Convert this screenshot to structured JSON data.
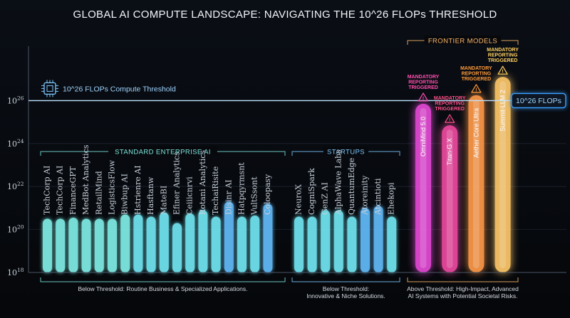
{
  "chart_data": {
    "type": "bar",
    "title": "GLOBAL AI COMPUTE LANDSCAPE: NAVIGATING THE 10^26 FLOPs THRESHOLD",
    "y_scale": "log",
    "ylim_exponent": [
      18,
      28
    ],
    "y_ticks": [
      {
        "exp": 18,
        "base": "10",
        "sup": "18"
      },
      {
        "exp": 20,
        "base": "10",
        "sup": "20"
      },
      {
        "exp": 22,
        "base": "10",
        "sup": "22"
      },
      {
        "exp": 24,
        "base": "10",
        "sup": "24"
      },
      {
        "exp": 26,
        "base": "10",
        "sup": "26"
      }
    ],
    "threshold": {
      "exp": 26,
      "label": "10^26 FLOPs Compute Threshold",
      "right_label": "10^26 FLOPs",
      "icon": "chip-icon",
      "color": "#3aa0ff"
    },
    "groups": [
      {
        "key": "enterprise",
        "label": "STANDARD ENTERPRISE AI",
        "footer": [
          "Below Threshold: Routine Business & Specialized Applications."
        ],
        "bars": [
          {
            "label": "TechCorp AI",
            "exp": 20.5,
            "color": "#7ee8e0"
          },
          {
            "label": "TechCorp AI",
            "exp": 20.5,
            "color": "#7ee8e0"
          },
          {
            "label": "FinanceGPT",
            "exp": 20.55,
            "color": "#7ee8e0"
          },
          {
            "label": "MedBot Analytics",
            "exp": 20.5,
            "color": "#7ee8e0"
          },
          {
            "label": "RetailMind",
            "exp": 20.5,
            "color": "#7ee8e0"
          },
          {
            "label": "LogisticsFlow",
            "exp": 20.5,
            "color": "#7ee8e0"
          },
          {
            "label": "Biwbup AI",
            "exp": 20.7,
            "color": "#7ee8e0"
          },
          {
            "label": "Hstrienre AI",
            "exp": 20.7,
            "color": "#6ee0ec"
          },
          {
            "label": "Hasftanw",
            "exp": 20.6,
            "color": "#6ee0ec"
          },
          {
            "label": "MateBI",
            "exp": 20.8,
            "color": "#6ee0ec"
          },
          {
            "label": "Efiner Analytics",
            "exp": 20.3,
            "color": "#6ee0ec"
          },
          {
            "label": "Ceiiicnrvi",
            "exp": 20.75,
            "color": "#6ee0ec"
          },
          {
            "label": "Rotani Analytics",
            "exp": 20.9,
            "color": "#6ee0ec"
          },
          {
            "label": "TechaiRisite",
            "exp": 20.6,
            "color": "#6ee0ec"
          },
          {
            "label": "Disinr AI",
            "exp": 21.3,
            "color": "#5fb6f2"
          },
          {
            "label": "Hatpqyrmsnt",
            "exp": 20.6,
            "color": "#6ee0ec"
          },
          {
            "label": "VultSsont",
            "exp": 20.65,
            "color": "#6ee0ec"
          },
          {
            "label": "Coloopasy",
            "exp": 21.2,
            "color": "#5fb6f2"
          }
        ]
      },
      {
        "key": "startups",
        "label": "STARTUPS",
        "footer": [
          "Below Threshold:",
          "Innovative & Niche Solutions."
        ],
        "bars": [
          {
            "label": "NeuroX",
            "exp": 20.6,
            "color": "#6ee0ec"
          },
          {
            "label": "CogniSpark",
            "exp": 20.6,
            "color": "#6ee0ec"
          },
          {
            "label": "GenZ AI",
            "exp": 20.9,
            "color": "#6ee0ec"
          },
          {
            "label": "AlphaWave Labs",
            "exp": 20.9,
            "color": "#6ee0ec"
          },
          {
            "label": "QuantumEdge",
            "exp": 20.6,
            "color": "#6ee0ec"
          },
          {
            "label": "Atoreinity",
            "exp": 21.0,
            "color": "#5fb6f2"
          },
          {
            "label": "Atcintioti",
            "exp": 21.1,
            "color": "#5fb6f2"
          },
          {
            "label": "Ehekopi",
            "exp": 20.6,
            "color": "#6ee0ec"
          }
        ]
      },
      {
        "key": "frontier",
        "label": "FRONTIER MODELS",
        "footer": [
          "Above Threshold: High-Impact, Advanced",
          "AI Systems with Potential Societal Risks."
        ],
        "bars": [
          {
            "label": "OmniMind 5.0",
            "exp": 25.85,
            "color": "#e54ad6",
            "flag": [
              "MANDATORY",
              "REPORTING",
              "TRIGGERED"
            ],
            "flag_color": "#ff4fb0"
          },
          {
            "label": "Titan-G X",
            "exp": 24.85,
            "color": "#ee4aa0",
            "flag": [
              "MANDATORY",
              "REPORTING",
              "TRIGGERED"
            ],
            "flag_color": "#ff4f88"
          },
          {
            "label": "Aether Core Ultra",
            "exp": 26.25,
            "color": "#ff9a4a",
            "flag": [
              "MANDATORY",
              "REPORTING",
              "TRIGGERED"
            ],
            "flag_color": "#ff9a3a"
          },
          {
            "label": "Summit-LLM 2",
            "exp": 27.1,
            "color": "#ffc869",
            "flag": [
              "MANDATORY",
              "REPORTING",
              "TRIGGERED"
            ],
            "flag_color": "#ffd060"
          }
        ]
      }
    ]
  }
}
